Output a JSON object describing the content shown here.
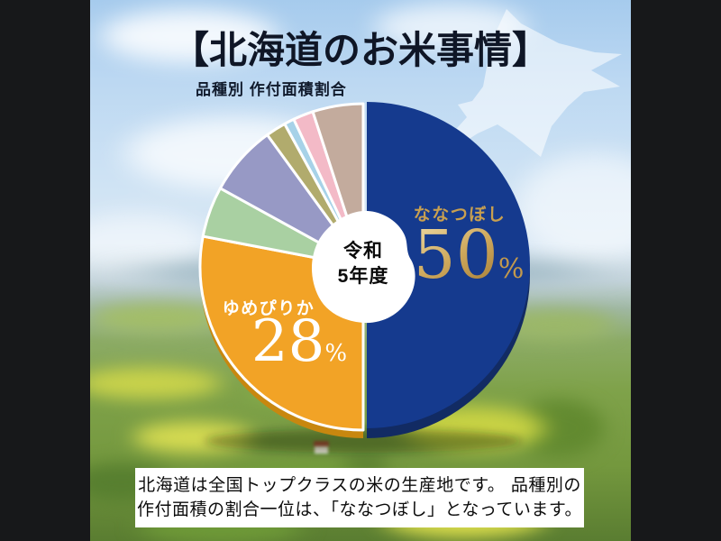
{
  "header": {
    "title": "【北海道のお米事情】",
    "subtitle": "品種別 作付面積割合"
  },
  "chart_data": {
    "type": "pie",
    "title": "品種別 作付面積割合",
    "center_label": {
      "line1": "令和",
      "line2": "5年度"
    },
    "unit": "%",
    "start_angle_deg": -90,
    "direction": "clockwise",
    "series": [
      {
        "name": "ななつぼし",
        "value": 50,
        "color": "#153a8e",
        "labeled": true
      },
      {
        "name": "ゆめぴりか",
        "value": 28,
        "color": "#f2a326",
        "labeled": true
      },
      {
        "name": "",
        "value": 5,
        "color": "#a9d0a2",
        "labeled": false
      },
      {
        "name": "",
        "value": 7,
        "color": "#9799c5",
        "labeled": false
      },
      {
        "name": "",
        "value": 2,
        "color": "#b1ab6d",
        "labeled": false
      },
      {
        "name": "",
        "value": 1,
        "color": "#a7d2e8",
        "labeled": false
      },
      {
        "name": "",
        "value": 2,
        "color": "#f3bac7",
        "labeled": false
      },
      {
        "name": "",
        "value": 5,
        "color": "#c3ab9d",
        "labeled": false
      }
    ],
    "depth_colors": {
      "right": "#122b63",
      "left": "#c8870f"
    },
    "hole_color": "#ffffff",
    "legend_position": "on-slice"
  },
  "theme": {
    "gold_label": "#c9a050",
    "white_label": "#ffffff",
    "title_color": "#0f1626",
    "letterbox": "#17181a"
  },
  "footer": {
    "line1": "北海道は全国トップクラスの米の生産地です。 品種別の",
    "line2": "作付面積の割合一位は、「ななつぼし」となっています。"
  }
}
